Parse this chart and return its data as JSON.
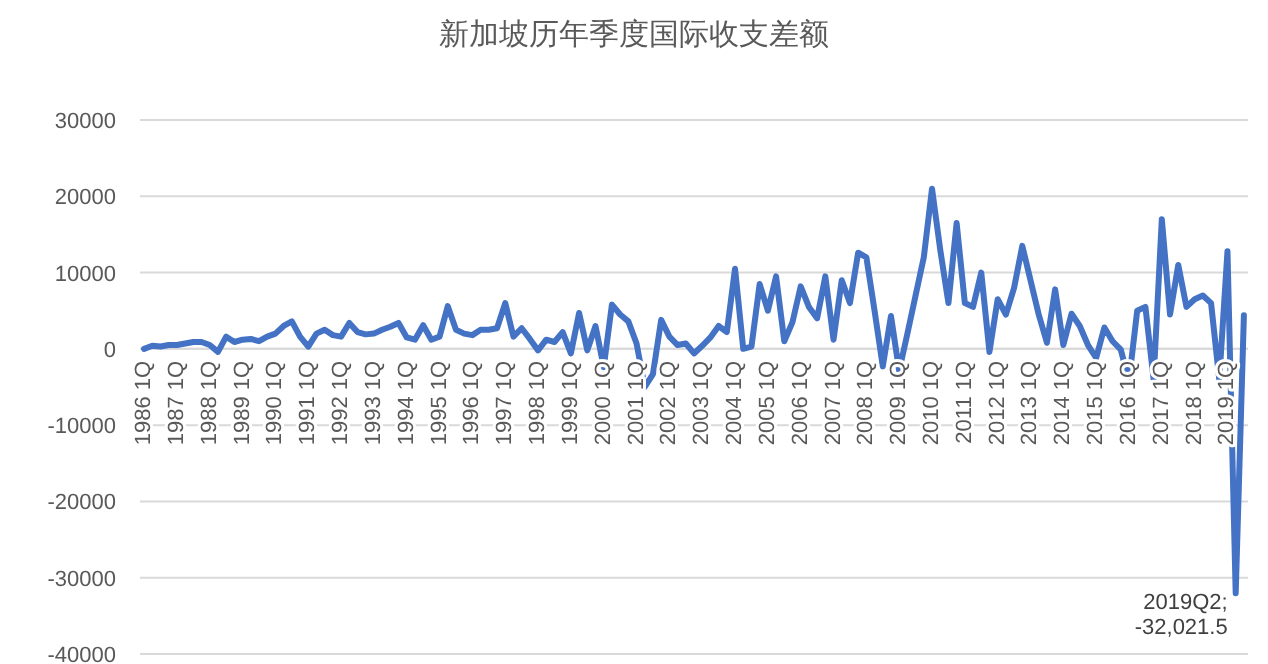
{
  "chart_data": {
    "type": "line",
    "title": "新加坡历年季度国际收支差额",
    "categories": [
      "1986 1Q",
      null,
      null,
      null,
      "1987 1Q",
      null,
      null,
      null,
      "1988 1Q",
      null,
      null,
      null,
      "1989 1Q",
      null,
      null,
      null,
      "1990 1Q",
      null,
      null,
      null,
      "1991 1Q",
      null,
      null,
      null,
      "1992 1Q",
      null,
      null,
      null,
      "1993 1Q",
      null,
      null,
      null,
      "1994 1Q",
      null,
      null,
      null,
      "1995 1Q",
      null,
      null,
      null,
      "1996 1Q",
      null,
      null,
      null,
      "1997 1Q",
      null,
      null,
      null,
      "1998 1Q",
      null,
      null,
      null,
      "1999 1Q",
      null,
      null,
      null,
      "2000 1Q",
      null,
      null,
      null,
      "2001 1Q",
      null,
      null,
      null,
      "2002 1Q",
      null,
      null,
      null,
      "2003 1Q",
      null,
      null,
      null,
      "2004 1Q",
      null,
      null,
      null,
      "2005 1Q",
      null,
      null,
      null,
      "2006 1Q",
      null,
      null,
      null,
      "2007 1Q",
      null,
      null,
      null,
      "2008 1Q",
      null,
      null,
      null,
      "2009 1Q",
      null,
      null,
      null,
      "2010 1Q",
      null,
      null,
      null,
      "2011 1Q",
      null,
      null,
      null,
      "2012 1Q",
      null,
      null,
      null,
      "2013 1Q",
      null,
      null,
      null,
      "2014 1Q",
      null,
      null,
      null,
      "2015 1Q",
      null,
      null,
      null,
      "2016 1Q",
      null,
      null,
      null,
      "2017 1Q",
      null,
      null,
      null,
      "2018 1Q",
      null,
      null,
      null,
      "2019 1Q",
      null,
      null
    ],
    "series": [
      {
        "color": "#4472c4",
        "values": [
          0,
          400,
          300,
          500,
          500,
          700,
          900,
          900,
          500,
          -400,
          1600,
          900,
          1200,
          1300,
          1000,
          1600,
          2000,
          3000,
          3600,
          1600,
          300,
          2000,
          2500,
          1800,
          1600,
          3400,
          2200,
          1900,
          2000,
          2500,
          2900,
          3400,
          1500,
          1200,
          3100,
          1200,
          1600,
          5600,
          2500,
          2000,
          1800,
          2500,
          2500,
          2700,
          6000,
          1600,
          2700,
          1300,
          -200,
          1200,
          900,
          2200,
          -600,
          4700,
          -200,
          3000,
          -2400,
          5800,
          4500,
          3600,
          700,
          -5000,
          -3300,
          3800,
          1600,
          500,
          700,
          -600,
          400,
          1500,
          3000,
          2200,
          10500,
          0,
          300,
          8500,
          5000,
          9500,
          1000,
          3500,
          8200,
          5500,
          4000,
          9500,
          1200,
          9000,
          6000,
          12600,
          12000,
          5000,
          -2300,
          4300,
          -2900,
          2000,
          7000,
          12000,
          21000,
          13000,
          6000,
          16500,
          6000,
          5500,
          10000,
          -400,
          6500,
          4500,
          8000,
          13500,
          9000,
          4500,
          800,
          7800,
          500,
          4600,
          3000,
          500,
          -1200,
          2800,
          1000,
          -100,
          -4200,
          5000,
          5500,
          -4000,
          17000,
          4500,
          11000,
          5500,
          6500,
          7000,
          6000,
          -4000,
          12800,
          -32021.5,
          4400
        ],
        "value_labels": [
          null,
          null,
          null,
          null,
          null,
          null,
          null,
          null,
          null,
          null,
          null,
          null,
          null,
          null,
          null,
          null,
          null,
          null,
          null,
          null,
          null,
          null,
          null,
          null,
          null,
          null,
          null,
          null,
          null,
          null,
          null,
          null,
          null,
          null,
          null,
          null,
          null,
          null,
          null,
          null,
          null,
          null,
          null,
          null,
          null,
          null,
          null,
          null,
          null,
          null,
          null,
          null,
          null,
          null,
          null,
          null,
          null,
          null,
          null,
          null,
          null,
          null,
          null,
          null,
          null,
          null,
          null,
          null,
          null,
          null,
          null,
          null,
          null,
          null,
          null,
          null,
          null,
          null,
          null,
          null,
          null,
          null,
          null,
          null,
          null,
          null,
          null,
          null,
          null,
          null,
          null,
          null,
          null,
          null,
          null,
          null,
          null,
          null,
          null,
          null,
          null,
          null,
          null,
          null,
          null,
          null,
          null,
          null,
          null,
          null,
          null,
          null,
          null,
          null,
          null,
          null,
          null,
          null,
          null,
          null,
          null,
          null,
          null,
          null,
          null,
          null,
          null,
          null,
          null,
          null,
          null,
          null,
          null,
          "2019Q2;\n-32,021.5",
          null
        ]
      }
    ],
    "ylim": [
      -40000,
      30000
    ],
    "yticks": [
      -40000,
      -30000,
      -20000,
      -10000,
      0,
      10000,
      20000,
      30000
    ],
    "grid": "y"
  }
}
